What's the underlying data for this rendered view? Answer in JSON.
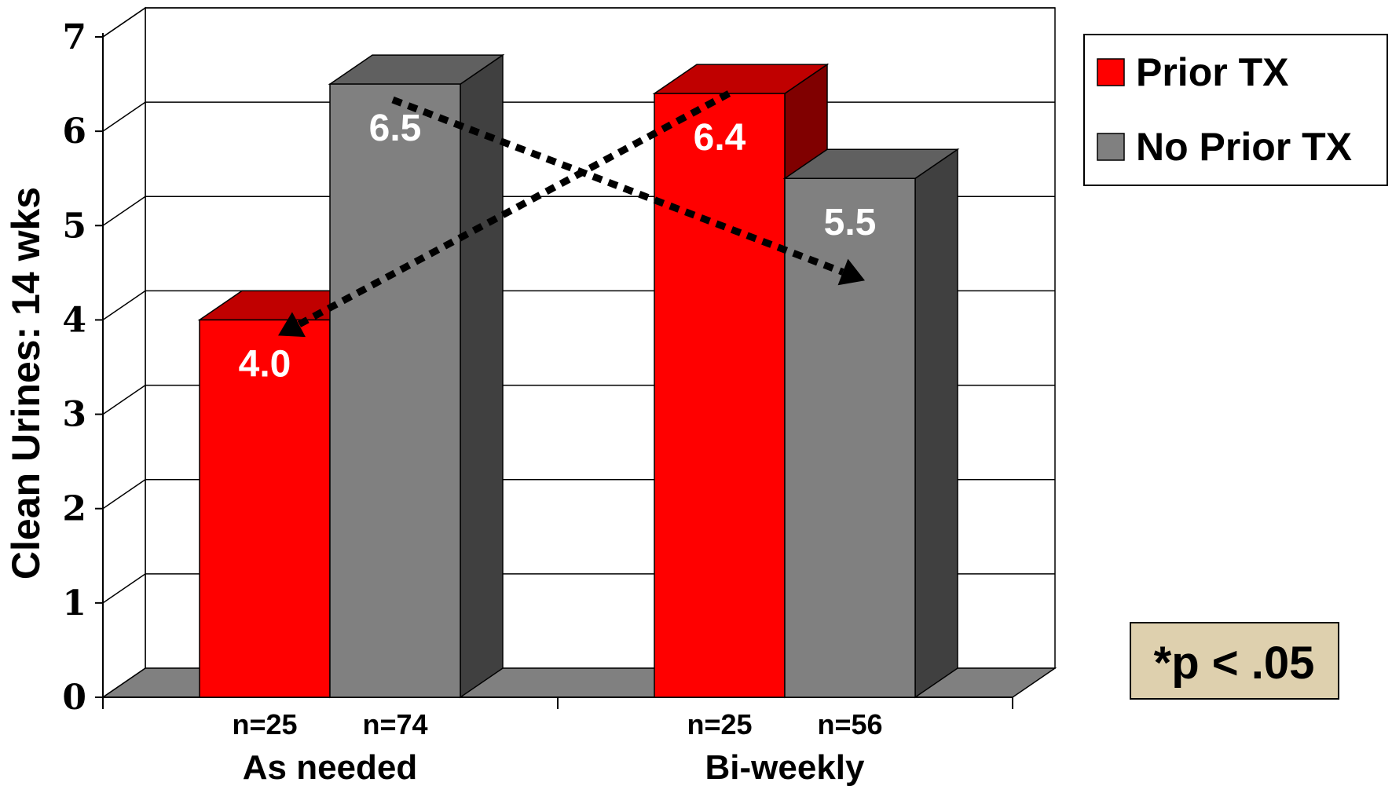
{
  "chart_data": {
    "type": "bar",
    "categories": [
      "As needed",
      "Bi-weekly"
    ],
    "series": [
      {
        "name": "Prior TX",
        "values": [
          4.0,
          6.4
        ],
        "value_labels": [
          "4.0",
          "6.4"
        ],
        "n_labels": [
          "n=25",
          "n=25"
        ],
        "color": "#ff0000",
        "top_color": "#c00000",
        "side_color": "#800000"
      },
      {
        "name": "No Prior TX",
        "values": [
          6.5,
          5.5
        ],
        "value_labels": [
          "6.5",
          "5.5"
        ],
        "n_labels": [
          "n=74",
          "n=56"
        ],
        "color": "#808080",
        "top_color": "#606060",
        "side_color": "#404040"
      }
    ],
    "ylabel": "Clean Urines: 14 wks",
    "xlabel": "",
    "ylim": [
      0,
      7
    ],
    "yticks": [
      "0",
      "1",
      "2",
      "3",
      "4",
      "5",
      "6",
      "7"
    ],
    "grid": true,
    "legend_position": "top-right",
    "annotation": "*p < .05",
    "annotation_bg": "#ded0ae",
    "arrows": "dotted arrows crossing between groups"
  }
}
